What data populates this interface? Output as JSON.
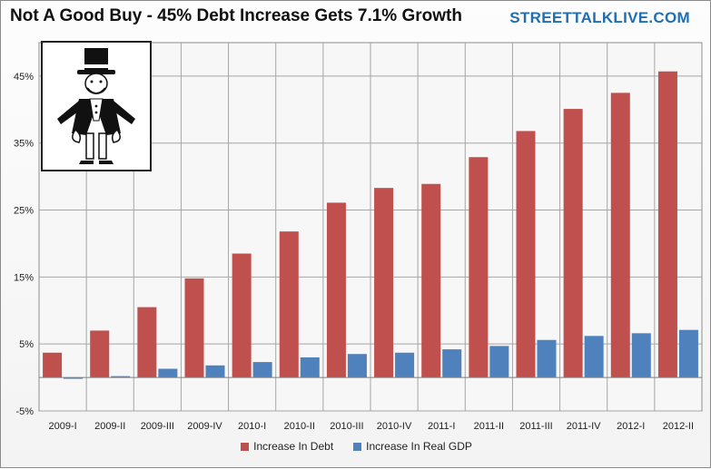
{
  "header": {
    "title": "Not A Good Buy - 45% Debt Increase Gets 7.1% Growth",
    "brand": "STREETTALKLIVE.COM"
  },
  "colors": {
    "debt": "#c0504d",
    "gdp": "#4f81bd",
    "grid": "#a6a6a6"
  },
  "mascot": {
    "icon": "monopoly-man-empty-pockets-icon"
  },
  "chart_data": {
    "type": "bar",
    "title": "Not A Good Buy - 45% Debt Increase Gets 7.1% Growth",
    "xlabel": "",
    "ylabel": "",
    "ylim": [
      -5,
      50
    ],
    "yticks": [
      -5,
      5,
      15,
      25,
      35,
      45
    ],
    "ytick_labels": [
      "-5%",
      "5%",
      "15%",
      "25%",
      "35%",
      "45%"
    ],
    "grid": true,
    "legend_position": "bottom",
    "categories": [
      "2009-I",
      "2009-II",
      "2009-III",
      "2009-IV",
      "2010-I",
      "2010-II",
      "2010-III",
      "2010-IV",
      "2011-I",
      "2011-II",
      "2011-III",
      "2011-IV",
      "2012-I",
      "2012-II"
    ],
    "series": [
      {
        "name": "Increase In Debt",
        "values": [
          3.7,
          7.0,
          10.5,
          14.8,
          18.5,
          21.8,
          26.1,
          28.3,
          28.9,
          32.9,
          36.8,
          40.1,
          42.5,
          45.7
        ]
      },
      {
        "name": "Increase In Real GDP",
        "values": [
          -0.2,
          0.2,
          1.3,
          1.8,
          2.3,
          3.0,
          3.5,
          3.7,
          4.2,
          4.7,
          5.6,
          6.2,
          6.6,
          7.1
        ]
      }
    ]
  }
}
